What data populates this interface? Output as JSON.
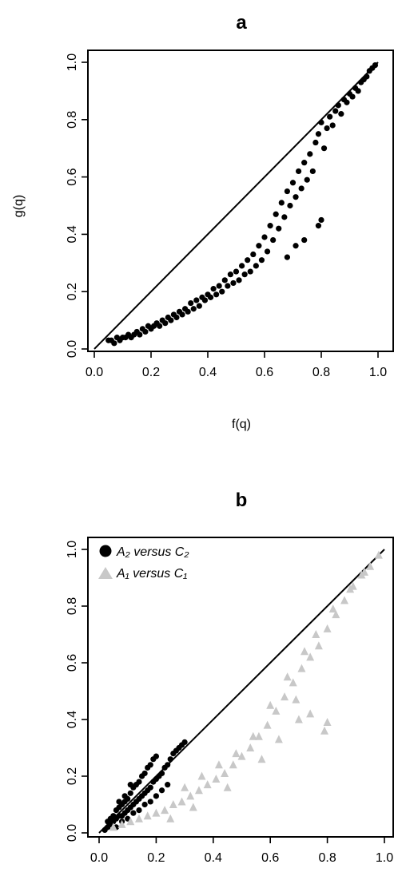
{
  "chart_data": [
    {
      "type": "scatter",
      "title": "a",
      "xlabel": "f(q)",
      "ylabel": "g(q)",
      "xlim": [
        0,
        1
      ],
      "ylim": [
        0,
        1
      ],
      "x_ticks": [
        "0.0",
        "0.2",
        "0.4",
        "0.6",
        "0.8",
        "1.0"
      ],
      "y_ticks": [
        "0.0",
        "0.2",
        "0.4",
        "0.6",
        "0.8",
        "1.0"
      ],
      "reference_line": "y = x",
      "grid": false,
      "point_color": "#000000",
      "series": [
        {
          "marker": "circle",
          "color": "#000000",
          "points": [
            [
              0.05,
              0.03
            ],
            [
              0.06,
              0.03
            ],
            [
              0.07,
              0.02
            ],
            [
              0.08,
              0.04
            ],
            [
              0.09,
              0.03
            ],
            [
              0.1,
              0.04
            ],
            [
              0.11,
              0.04
            ],
            [
              0.12,
              0.05
            ],
            [
              0.13,
              0.04
            ],
            [
              0.14,
              0.05
            ],
            [
              0.15,
              0.06
            ],
            [
              0.16,
              0.05
            ],
            [
              0.17,
              0.07
            ],
            [
              0.18,
              0.06
            ],
            [
              0.19,
              0.08
            ],
            [
              0.2,
              0.07
            ],
            [
              0.21,
              0.08
            ],
            [
              0.22,
              0.09
            ],
            [
              0.23,
              0.08
            ],
            [
              0.24,
              0.1
            ],
            [
              0.25,
              0.09
            ],
            [
              0.26,
              0.11
            ],
            [
              0.27,
              0.1
            ],
            [
              0.28,
              0.12
            ],
            [
              0.29,
              0.11
            ],
            [
              0.3,
              0.13
            ],
            [
              0.31,
              0.12
            ],
            [
              0.32,
              0.14
            ],
            [
              0.33,
              0.13
            ],
            [
              0.34,
              0.16
            ],
            [
              0.35,
              0.14
            ],
            [
              0.36,
              0.17
            ],
            [
              0.37,
              0.15
            ],
            [
              0.38,
              0.18
            ],
            [
              0.39,
              0.17
            ],
            [
              0.4,
              0.19
            ],
            [
              0.41,
              0.18
            ],
            [
              0.42,
              0.21
            ],
            [
              0.43,
              0.19
            ],
            [
              0.44,
              0.22
            ],
            [
              0.45,
              0.2
            ],
            [
              0.46,
              0.24
            ],
            [
              0.47,
              0.22
            ],
            [
              0.48,
              0.26
            ],
            [
              0.49,
              0.23
            ],
            [
              0.5,
              0.27
            ],
            [
              0.51,
              0.24
            ],
            [
              0.52,
              0.29
            ],
            [
              0.53,
              0.26
            ],
            [
              0.54,
              0.31
            ],
            [
              0.55,
              0.27
            ],
            [
              0.56,
              0.33
            ],
            [
              0.57,
              0.29
            ],
            [
              0.58,
              0.36
            ],
            [
              0.59,
              0.31
            ],
            [
              0.6,
              0.39
            ],
            [
              0.61,
              0.34
            ],
            [
              0.62,
              0.43
            ],
            [
              0.63,
              0.38
            ],
            [
              0.64,
              0.47
            ],
            [
              0.65,
              0.42
            ],
            [
              0.66,
              0.51
            ],
            [
              0.67,
              0.46
            ],
            [
              0.68,
              0.55
            ],
            [
              0.69,
              0.5
            ],
            [
              0.7,
              0.58
            ],
            [
              0.71,
              0.53
            ],
            [
              0.72,
              0.62
            ],
            [
              0.73,
              0.56
            ],
            [
              0.74,
              0.65
            ],
            [
              0.75,
              0.59
            ],
            [
              0.76,
              0.68
            ],
            [
              0.77,
              0.62
            ],
            [
              0.78,
              0.72
            ],
            [
              0.79,
              0.75
            ],
            [
              0.8,
              0.79
            ],
            [
              0.81,
              0.7
            ],
            [
              0.82,
              0.77
            ],
            [
              0.83,
              0.81
            ],
            [
              0.84,
              0.78
            ],
            [
              0.85,
              0.83
            ],
            [
              0.86,
              0.85
            ],
            [
              0.87,
              0.82
            ],
            [
              0.88,
              0.87
            ],
            [
              0.89,
              0.86
            ],
            [
              0.9,
              0.89
            ],
            [
              0.91,
              0.88
            ],
            [
              0.92,
              0.91
            ],
            [
              0.93,
              0.9
            ],
            [
              0.94,
              0.93
            ],
            [
              0.95,
              0.94
            ],
            [
              0.96,
              0.95
            ],
            [
              0.97,
              0.97
            ],
            [
              0.98,
              0.98
            ],
            [
              0.99,
              0.99
            ],
            [
              0.79,
              0.43
            ],
            [
              0.8,
              0.45
            ],
            [
              0.74,
              0.38
            ],
            [
              0.68,
              0.32
            ],
            [
              0.71,
              0.36
            ]
          ]
        }
      ]
    },
    {
      "type": "scatter",
      "title": "b",
      "xlabel": "",
      "ylabel": "",
      "xlim": [
        0,
        1
      ],
      "ylim": [
        0,
        1
      ],
      "x_ticks": [
        "0.0",
        "0.2",
        "0.4",
        "0.6",
        "0.8",
        "1.0"
      ],
      "y_ticks": [
        "0.0",
        "0.2",
        "0.4",
        "0.6",
        "0.8",
        "1.0"
      ],
      "reference_line": "y = x",
      "grid": false,
      "legend_position": "top-left",
      "series": [
        {
          "name": "A₂ versus C₂",
          "marker": "circle",
          "color": "#000000",
          "points": [
            [
              0.02,
              0.01
            ],
            [
              0.03,
              0.02
            ],
            [
              0.04,
              0.03
            ],
            [
              0.05,
              0.04
            ],
            [
              0.06,
              0.05
            ],
            [
              0.07,
              0.06
            ],
            [
              0.08,
              0.06
            ],
            [
              0.09,
              0.07
            ],
            [
              0.1,
              0.08
            ],
            [
              0.11,
              0.09
            ],
            [
              0.12,
              0.1
            ],
            [
              0.13,
              0.11
            ],
            [
              0.14,
              0.12
            ],
            [
              0.15,
              0.13
            ],
            [
              0.16,
              0.14
            ],
            [
              0.17,
              0.15
            ],
            [
              0.18,
              0.16
            ],
            [
              0.19,
              0.18
            ],
            [
              0.2,
              0.19
            ],
            [
              0.21,
              0.2
            ],
            [
              0.22,
              0.21
            ],
            [
              0.23,
              0.23
            ],
            [
              0.24,
              0.24
            ],
            [
              0.25,
              0.26
            ],
            [
              0.26,
              0.28
            ],
            [
              0.27,
              0.29
            ],
            [
              0.28,
              0.3
            ],
            [
              0.29,
              0.31
            ],
            [
              0.3,
              0.32
            ],
            [
              0.05,
              0.06
            ],
            [
              0.06,
              0.08
            ],
            [
              0.07,
              0.09
            ],
            [
              0.08,
              0.1
            ],
            [
              0.09,
              0.11
            ],
            [
              0.1,
              0.12
            ],
            [
              0.11,
              0.14
            ],
            [
              0.12,
              0.16
            ],
            [
              0.13,
              0.17
            ],
            [
              0.14,
              0.18
            ],
            [
              0.15,
              0.2
            ],
            [
              0.16,
              0.21
            ],
            [
              0.17,
              0.23
            ],
            [
              0.18,
              0.24
            ],
            [
              0.19,
              0.26
            ],
            [
              0.2,
              0.27
            ],
            [
              0.06,
              0.02
            ],
            [
              0.08,
              0.04
            ],
            [
              0.1,
              0.05
            ],
            [
              0.12,
              0.07
            ],
            [
              0.14,
              0.08
            ],
            [
              0.16,
              0.1
            ],
            [
              0.18,
              0.11
            ],
            [
              0.2,
              0.13
            ],
            [
              0.22,
              0.15
            ],
            [
              0.24,
              0.17
            ],
            [
              0.04,
              0.05
            ],
            [
              0.03,
              0.04
            ],
            [
              0.07,
              0.11
            ],
            [
              0.09,
              0.13
            ],
            [
              0.11,
              0.17
            ]
          ]
        },
        {
          "name": "A₁ versus C₁",
          "marker": "triangle",
          "color": "#c8c8c8",
          "points": [
            [
              0.05,
              0.02
            ],
            [
              0.08,
              0.03
            ],
            [
              0.11,
              0.04
            ],
            [
              0.14,
              0.05
            ],
            [
              0.17,
              0.06
            ],
            [
              0.2,
              0.07
            ],
            [
              0.23,
              0.08
            ],
            [
              0.26,
              0.1
            ],
            [
              0.29,
              0.11
            ],
            [
              0.32,
              0.13
            ],
            [
              0.35,
              0.15
            ],
            [
              0.38,
              0.17
            ],
            [
              0.41,
              0.19
            ],
            [
              0.44,
              0.21
            ],
            [
              0.47,
              0.24
            ],
            [
              0.5,
              0.27
            ],
            [
              0.53,
              0.3
            ],
            [
              0.56,
              0.34
            ],
            [
              0.59,
              0.38
            ],
            [
              0.62,
              0.43
            ],
            [
              0.65,
              0.48
            ],
            [
              0.68,
              0.53
            ],
            [
              0.71,
              0.58
            ],
            [
              0.74,
              0.62
            ],
            [
              0.77,
              0.66
            ],
            [
              0.8,
              0.72
            ],
            [
              0.83,
              0.77
            ],
            [
              0.86,
              0.82
            ],
            [
              0.89,
              0.87
            ],
            [
              0.92,
              0.91
            ],
            [
              0.95,
              0.94
            ],
            [
              0.98,
              0.98
            ],
            [
              0.3,
              0.16
            ],
            [
              0.36,
              0.2
            ],
            [
              0.42,
              0.24
            ],
            [
              0.48,
              0.28
            ],
            [
              0.54,
              0.34
            ],
            [
              0.6,
              0.45
            ],
            [
              0.66,
              0.55
            ],
            [
              0.72,
              0.64
            ],
            [
              0.76,
              0.7
            ],
            [
              0.82,
              0.79
            ],
            [
              0.88,
              0.86
            ],
            [
              0.93,
              0.92
            ],
            [
              0.79,
              0.36
            ],
            [
              0.8,
              0.39
            ],
            [
              0.74,
              0.42
            ],
            [
              0.7,
              0.4
            ],
            [
              0.25,
              0.05
            ],
            [
              0.33,
              0.09
            ],
            [
              0.45,
              0.16
            ],
            [
              0.57,
              0.26
            ],
            [
              0.63,
              0.33
            ],
            [
              0.69,
              0.47
            ]
          ]
        }
      ]
    }
  ]
}
